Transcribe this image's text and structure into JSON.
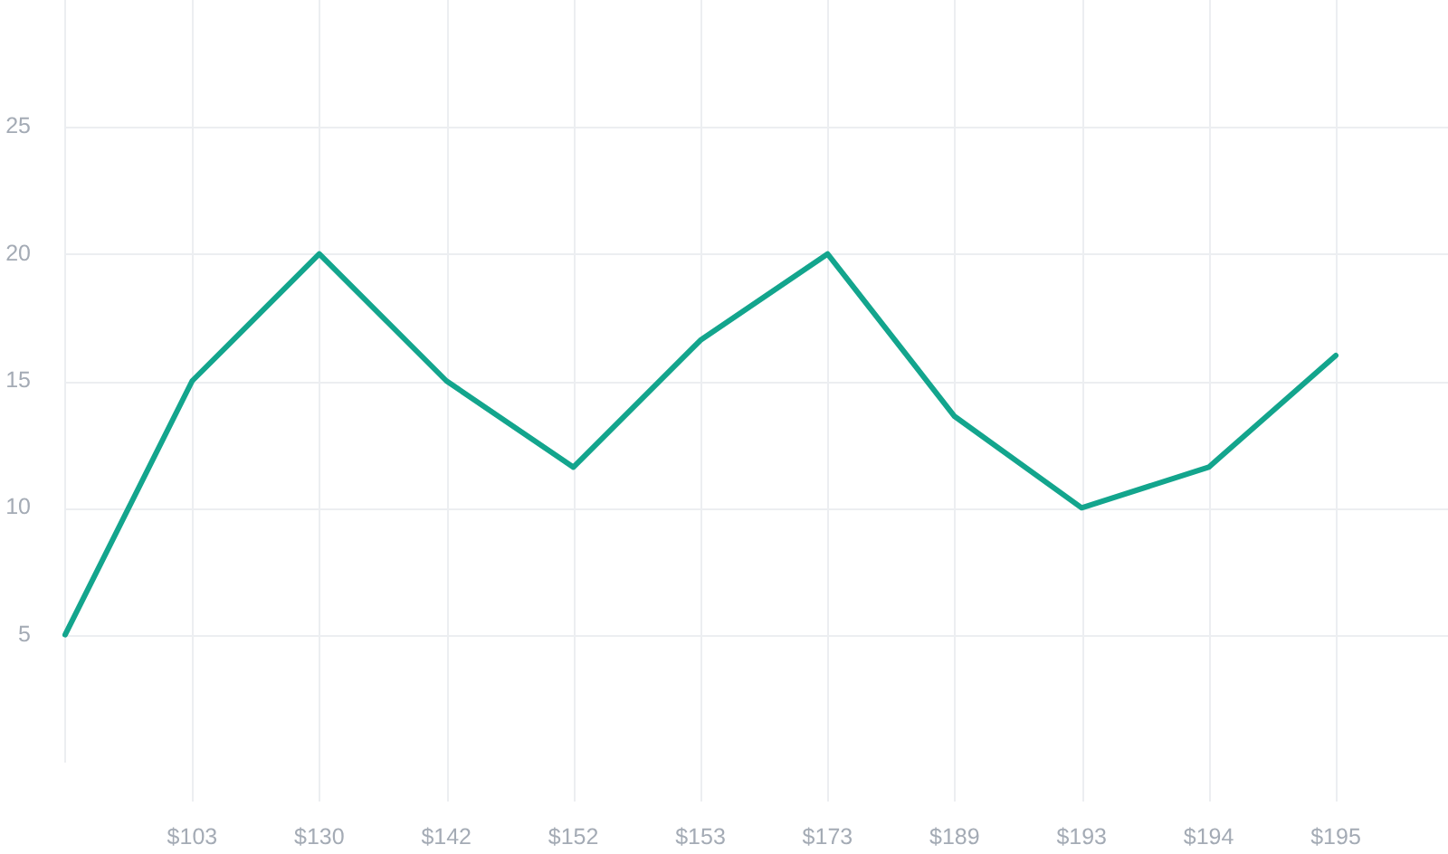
{
  "chart_data": {
    "type": "line",
    "categories": [
      null,
      "$103",
      "$130",
      "$142",
      "$152",
      "$153",
      "$173",
      "$189",
      "$193",
      "$194",
      "$195"
    ],
    "series": [
      {
        "color": "#13a58d",
        "values": [
          5,
          15,
          20,
          15,
          11.6,
          16.6,
          20,
          13.6,
          10,
          11.6,
          16
        ]
      }
    ],
    "ylim": [
      0,
      30
    ],
    "yticks": [
      5,
      10,
      15,
      20,
      25
    ],
    "grid": true,
    "legend": false,
    "marker": "none",
    "line_style": "solid"
  }
}
